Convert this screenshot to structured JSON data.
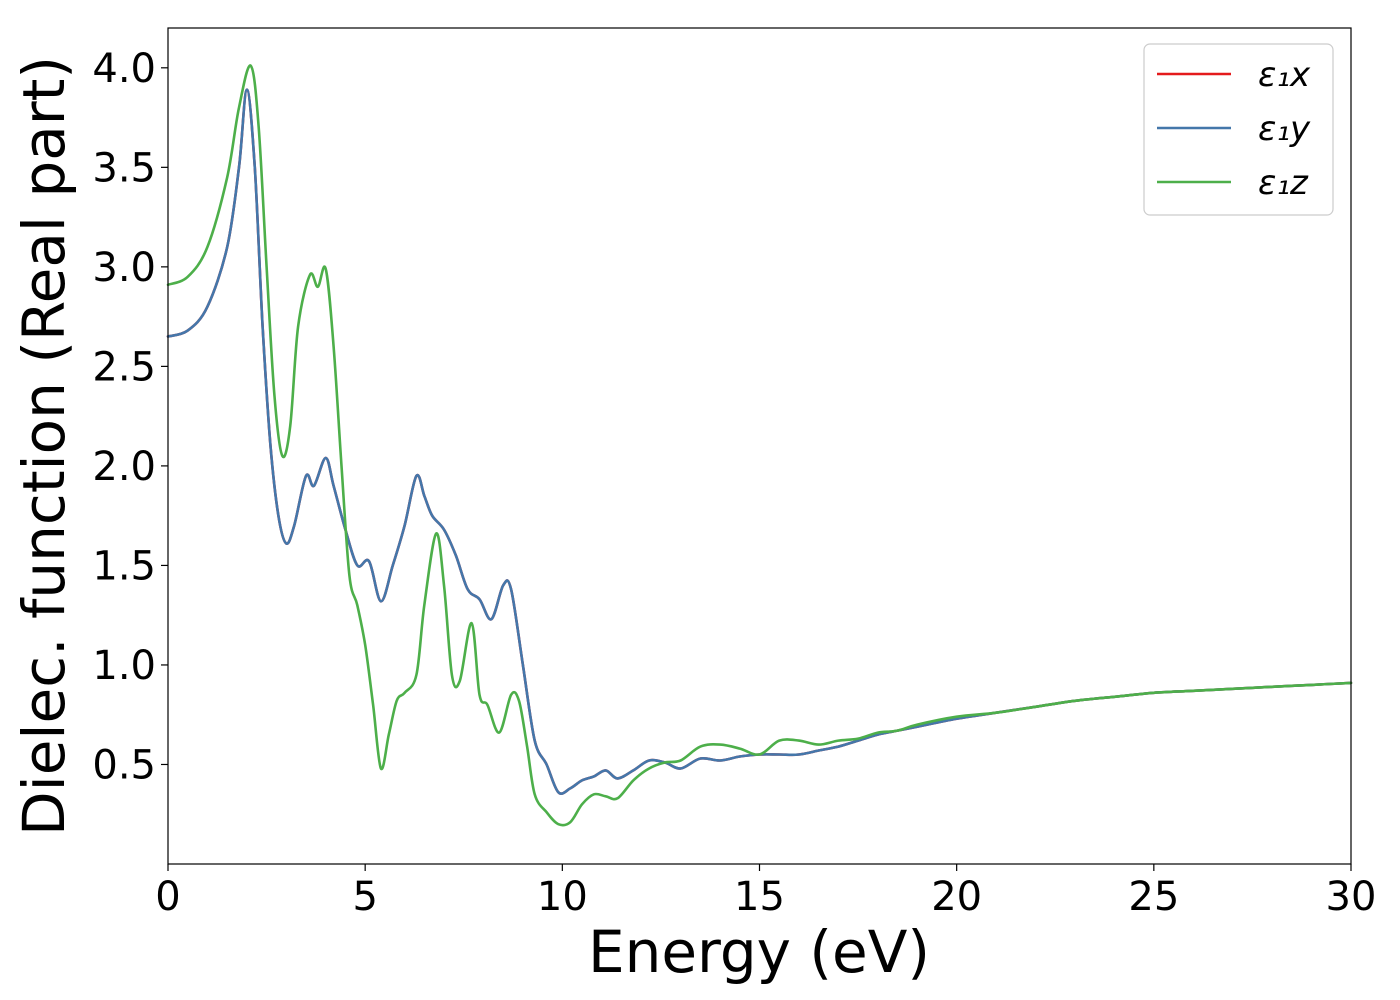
{
  "chart_data": {
    "type": "line",
    "title": "",
    "xlabel": "Energy (eV)",
    "ylabel": "Dielec. function (Real part)",
    "xlim": [
      0,
      30
    ],
    "ylim": [
      0,
      4.2
    ],
    "xticks": [
      0,
      5,
      10,
      15,
      20,
      25,
      30
    ],
    "yticks": [
      0.5,
      1.0,
      1.5,
      2.0,
      2.5,
      3.0,
      3.5,
      4.0
    ],
    "xtick_labels": [
      "0",
      "5",
      "10",
      "15",
      "20",
      "25",
      "30"
    ],
    "ytick_labels": [
      "0.5",
      "1.0",
      "1.5",
      "2.0",
      "2.5",
      "3.0",
      "3.5",
      "4.0"
    ],
    "grid": false,
    "legend_position": "top-right",
    "series": [
      {
        "name": "ε₁x",
        "color": "#e41a1c",
        "points": [
          [
            0,
            2.65
          ],
          [
            0.5,
            2.68
          ],
          [
            1.0,
            2.8
          ],
          [
            1.5,
            3.1
          ],
          [
            1.8,
            3.5
          ],
          [
            2.0,
            3.89
          ],
          [
            2.2,
            3.5
          ],
          [
            2.4,
            2.7
          ],
          [
            2.6,
            2.1
          ],
          [
            2.8,
            1.75
          ],
          [
            3.0,
            1.61
          ],
          [
            3.2,
            1.7
          ],
          [
            3.5,
            1.95
          ],
          [
            3.7,
            1.9
          ],
          [
            4.0,
            2.04
          ],
          [
            4.2,
            1.9
          ],
          [
            4.5,
            1.68
          ],
          [
            4.8,
            1.5
          ],
          [
            5.1,
            1.52
          ],
          [
            5.4,
            1.32
          ],
          [
            5.7,
            1.5
          ],
          [
            6.0,
            1.7
          ],
          [
            6.3,
            1.95
          ],
          [
            6.5,
            1.85
          ],
          [
            6.7,
            1.75
          ],
          [
            7.0,
            1.68
          ],
          [
            7.3,
            1.55
          ],
          [
            7.6,
            1.38
          ],
          [
            7.9,
            1.33
          ],
          [
            8.2,
            1.23
          ],
          [
            8.5,
            1.4
          ],
          [
            8.7,
            1.38
          ],
          [
            9.0,
            1.0
          ],
          [
            9.3,
            0.62
          ],
          [
            9.6,
            0.5
          ],
          [
            9.9,
            0.36
          ],
          [
            10.2,
            0.38
          ],
          [
            10.5,
            0.42
          ],
          [
            10.8,
            0.44
          ],
          [
            11.1,
            0.47
          ],
          [
            11.4,
            0.43
          ],
          [
            11.8,
            0.47
          ],
          [
            12.2,
            0.52
          ],
          [
            12.6,
            0.51
          ],
          [
            13.0,
            0.48
          ],
          [
            13.5,
            0.53
          ],
          [
            14.0,
            0.52
          ],
          [
            14.5,
            0.54
          ],
          [
            15.0,
            0.55
          ],
          [
            15.5,
            0.55
          ],
          [
            16.0,
            0.55
          ],
          [
            16.5,
            0.57
          ],
          [
            17.0,
            0.59
          ],
          [
            17.5,
            0.62
          ],
          [
            18.0,
            0.65
          ],
          [
            18.5,
            0.67
          ],
          [
            19.0,
            0.69
          ],
          [
            20.0,
            0.73
          ],
          [
            21.0,
            0.76
          ],
          [
            22.0,
            0.79
          ],
          [
            23.0,
            0.82
          ],
          [
            24.0,
            0.84
          ],
          [
            25.0,
            0.86
          ],
          [
            26.0,
            0.87
          ],
          [
            27.0,
            0.88
          ],
          [
            28.0,
            0.89
          ],
          [
            29.0,
            0.9
          ],
          [
            30.0,
            0.91
          ]
        ]
      },
      {
        "name": "ε₁y",
        "color": "#4477aa",
        "points": [
          [
            0,
            2.65
          ],
          [
            0.5,
            2.68
          ],
          [
            1.0,
            2.8
          ],
          [
            1.5,
            3.1
          ],
          [
            1.8,
            3.5
          ],
          [
            2.0,
            3.89
          ],
          [
            2.2,
            3.5
          ],
          [
            2.4,
            2.7
          ],
          [
            2.6,
            2.1
          ],
          [
            2.8,
            1.75
          ],
          [
            3.0,
            1.61
          ],
          [
            3.2,
            1.7
          ],
          [
            3.5,
            1.95
          ],
          [
            3.7,
            1.9
          ],
          [
            4.0,
            2.04
          ],
          [
            4.2,
            1.9
          ],
          [
            4.5,
            1.68
          ],
          [
            4.8,
            1.5
          ],
          [
            5.1,
            1.52
          ],
          [
            5.4,
            1.32
          ],
          [
            5.7,
            1.5
          ],
          [
            6.0,
            1.7
          ],
          [
            6.3,
            1.95
          ],
          [
            6.5,
            1.85
          ],
          [
            6.7,
            1.75
          ],
          [
            7.0,
            1.68
          ],
          [
            7.3,
            1.55
          ],
          [
            7.6,
            1.38
          ],
          [
            7.9,
            1.33
          ],
          [
            8.2,
            1.23
          ],
          [
            8.5,
            1.4
          ],
          [
            8.7,
            1.38
          ],
          [
            9.0,
            1.0
          ],
          [
            9.3,
            0.62
          ],
          [
            9.6,
            0.5
          ],
          [
            9.9,
            0.36
          ],
          [
            10.2,
            0.38
          ],
          [
            10.5,
            0.42
          ],
          [
            10.8,
            0.44
          ],
          [
            11.1,
            0.47
          ],
          [
            11.4,
            0.43
          ],
          [
            11.8,
            0.47
          ],
          [
            12.2,
            0.52
          ],
          [
            12.6,
            0.51
          ],
          [
            13.0,
            0.48
          ],
          [
            13.5,
            0.53
          ],
          [
            14.0,
            0.52
          ],
          [
            14.5,
            0.54
          ],
          [
            15.0,
            0.55
          ],
          [
            15.5,
            0.55
          ],
          [
            16.0,
            0.55
          ],
          [
            16.5,
            0.57
          ],
          [
            17.0,
            0.59
          ],
          [
            17.5,
            0.62
          ],
          [
            18.0,
            0.65
          ],
          [
            18.5,
            0.67
          ],
          [
            19.0,
            0.69
          ],
          [
            20.0,
            0.73
          ],
          [
            21.0,
            0.76
          ],
          [
            22.0,
            0.79
          ],
          [
            23.0,
            0.82
          ],
          [
            24.0,
            0.84
          ],
          [
            25.0,
            0.86
          ],
          [
            26.0,
            0.87
          ],
          [
            27.0,
            0.88
          ],
          [
            28.0,
            0.89
          ],
          [
            29.0,
            0.9
          ],
          [
            30.0,
            0.91
          ]
        ]
      },
      {
        "name": "ε₁z",
        "color": "#4daf4a",
        "points": [
          [
            0,
            2.91
          ],
          [
            0.5,
            2.95
          ],
          [
            1.0,
            3.1
          ],
          [
            1.5,
            3.45
          ],
          [
            1.8,
            3.8
          ],
          [
            2.1,
            4.01
          ],
          [
            2.3,
            3.7
          ],
          [
            2.5,
            3.0
          ],
          [
            2.7,
            2.35
          ],
          [
            2.9,
            2.05
          ],
          [
            3.1,
            2.2
          ],
          [
            3.3,
            2.7
          ],
          [
            3.6,
            2.96
          ],
          [
            3.8,
            2.9
          ],
          [
            4.0,
            2.99
          ],
          [
            4.2,
            2.6
          ],
          [
            4.4,
            2.0
          ],
          [
            4.6,
            1.45
          ],
          [
            4.8,
            1.3
          ],
          [
            5.0,
            1.1
          ],
          [
            5.2,
            0.8
          ],
          [
            5.4,
            0.48
          ],
          [
            5.6,
            0.65
          ],
          [
            5.8,
            0.82
          ],
          [
            6.0,
            0.86
          ],
          [
            6.3,
            0.95
          ],
          [
            6.5,
            1.3
          ],
          [
            6.8,
            1.66
          ],
          [
            7.0,
            1.4
          ],
          [
            7.2,
            0.95
          ],
          [
            7.4,
            0.92
          ],
          [
            7.7,
            1.21
          ],
          [
            7.9,
            0.85
          ],
          [
            8.1,
            0.8
          ],
          [
            8.4,
            0.66
          ],
          [
            8.7,
            0.85
          ],
          [
            8.9,
            0.82
          ],
          [
            9.1,
            0.6
          ],
          [
            9.3,
            0.35
          ],
          [
            9.6,
            0.26
          ],
          [
            9.9,
            0.2
          ],
          [
            10.2,
            0.21
          ],
          [
            10.5,
            0.3
          ],
          [
            10.8,
            0.35
          ],
          [
            11.1,
            0.34
          ],
          [
            11.4,
            0.33
          ],
          [
            11.8,
            0.42
          ],
          [
            12.2,
            0.48
          ],
          [
            12.6,
            0.51
          ],
          [
            13.0,
            0.52
          ],
          [
            13.5,
            0.59
          ],
          [
            14.0,
            0.6
          ],
          [
            14.5,
            0.58
          ],
          [
            15.0,
            0.55
          ],
          [
            15.5,
            0.62
          ],
          [
            16.0,
            0.62
          ],
          [
            16.5,
            0.6
          ],
          [
            17.0,
            0.62
          ],
          [
            17.5,
            0.63
          ],
          [
            18.0,
            0.66
          ],
          [
            18.5,
            0.67
          ],
          [
            19.0,
            0.7
          ],
          [
            20.0,
            0.74
          ],
          [
            21.0,
            0.76
          ],
          [
            22.0,
            0.79
          ],
          [
            23.0,
            0.82
          ],
          [
            24.0,
            0.84
          ],
          [
            25.0,
            0.86
          ],
          [
            26.0,
            0.87
          ],
          [
            27.0,
            0.88
          ],
          [
            28.0,
            0.89
          ],
          [
            29.0,
            0.9
          ],
          [
            30.0,
            0.91
          ]
        ]
      }
    ]
  }
}
